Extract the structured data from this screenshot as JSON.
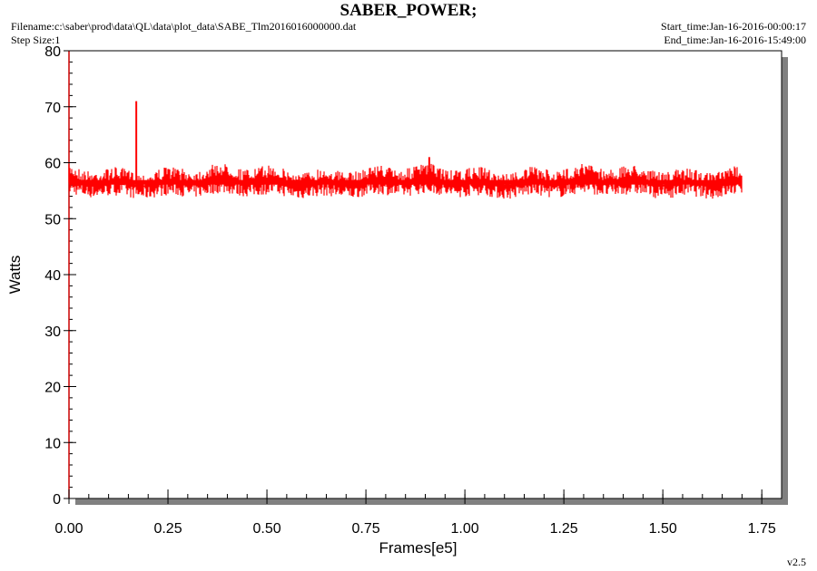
{
  "header": {
    "title": "SABER_POWER;",
    "filename": "Filename:c:\\saber\\prod\\data\\QL\\data\\plot_data\\SABE_Tlm2016016000000.dat",
    "step_size": "Step Size:1",
    "start_time": "Start_time:Jan-16-2016-00:00:17",
    "end_time": "End_time:Jan-16-2016-15:49:00"
  },
  "footer": {
    "version": "v2.5"
  },
  "colors": {
    "series": "#ff0000",
    "axis_left": "#cc0000",
    "frame": "#000000",
    "shadow": "#808080"
  },
  "chart_data": {
    "type": "line",
    "title": "SABER_POWER;",
    "xlabel": "Frames[e5]",
    "ylabel": "Watts",
    "xlim": [
      0,
      1.8
    ],
    "ylim": [
      0,
      80
    ],
    "xticks": [
      "0.00",
      "0.25",
      "0.50",
      "0.75",
      "1.00",
      "1.25",
      "1.50",
      "1.75"
    ],
    "yticks": [
      "0",
      "10",
      "20",
      "30",
      "40",
      "50",
      "60",
      "70",
      "80"
    ],
    "x_range": [
      0,
      1.7
    ],
    "baseline": 56.5,
    "band": [
      54,
      59
    ],
    "spikes": [
      {
        "x": 0.17,
        "y": 71
      },
      {
        "x": 0.91,
        "y": 61
      }
    ],
    "grid": false,
    "legend": "none"
  }
}
